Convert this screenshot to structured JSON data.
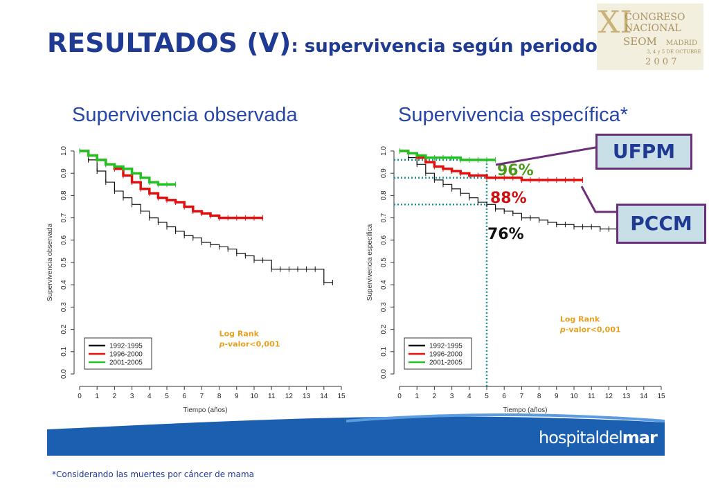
{
  "slide": {
    "title_main": "RESULTADOS (V)",
    "title_sub": ": supervivencia según periodo",
    "footnote": "*Considerando las muertes por cáncer de mama",
    "brand_prefix": "hospitaldel",
    "brand_suffix": "mar"
  },
  "logo": {
    "roman": "XI",
    "line1": "CONGRESO",
    "line2": "NACIONAL",
    "line3": "SEOM",
    "city": "MADRID",
    "dates": "3, 4 y 5 DE OCTUBRE",
    "year": "2 0 0 7"
  },
  "colors": {
    "title": "#1f3a93",
    "series_1992": "#111111",
    "series_1996": "#e01010",
    "series_2001": "#22c022",
    "logrank": "#e8a020",
    "band": "#1a5fb0",
    "box_border": "#6b2f7a",
    "guide": "#1a9090"
  },
  "annotations": {
    "pct_ufpm": "96%",
    "pct_pccm": "88%",
    "pct_black": "76%",
    "box_ufpm": "UFPM",
    "box_pccm": "PCCM"
  },
  "chart_data": [
    {
      "type": "line",
      "title": "Supervivencia observada",
      "xlabel": "Tiempo (años)",
      "ylabel": "Supervivencia observada",
      "xlim": [
        0,
        15
      ],
      "ylim": [
        0,
        1
      ],
      "x_ticks": [
        "0",
        "1",
        "2",
        "3",
        "4",
        "5",
        "6",
        "7",
        "8",
        "9",
        "10",
        "11",
        "12",
        "13",
        "14",
        "15"
      ],
      "y_ticks": [
        "0.0",
        "0.1",
        "0.2",
        "0.3",
        "0.4",
        "0.5",
        "0.6",
        "0.7",
        "0.8",
        "0.9",
        "1.0"
      ],
      "legend_position": "bottom-left",
      "legend": [
        "1992-1995",
        "1996-2000",
        "2001-2005"
      ],
      "annotation_line1": "Log Rank",
      "annotation_p": "p",
      "annotation_rest": "-valor<0,001",
      "series": [
        {
          "name": "1992-1995",
          "x": [
            0,
            0.5,
            1,
            1.5,
            2,
            2.5,
            3,
            3.5,
            4,
            4.5,
            5,
            5.5,
            6,
            6.5,
            7,
            7.5,
            8,
            8.5,
            9,
            9.5,
            10,
            10.5,
            11,
            11.5,
            12,
            12.5,
            13,
            13.5,
            14,
            14.5
          ],
          "y": [
            1.0,
            0.96,
            0.91,
            0.86,
            0.82,
            0.79,
            0.76,
            0.73,
            0.7,
            0.68,
            0.66,
            0.64,
            0.62,
            0.61,
            0.59,
            0.58,
            0.57,
            0.56,
            0.54,
            0.53,
            0.51,
            0.51,
            0.47,
            0.47,
            0.47,
            0.47,
            0.47,
            0.47,
            0.41,
            0.41
          ]
        },
        {
          "name": "1996-2000",
          "x": [
            0,
            0.5,
            1,
            1.5,
            2,
            2.5,
            3,
            3.5,
            4,
            4.5,
            5,
            5.5,
            6,
            6.5,
            7,
            7.5,
            8,
            8.5,
            9,
            9.5,
            10,
            10.5
          ],
          "y": [
            1.0,
            0.98,
            0.96,
            0.94,
            0.92,
            0.89,
            0.86,
            0.83,
            0.81,
            0.79,
            0.78,
            0.77,
            0.75,
            0.73,
            0.72,
            0.71,
            0.7,
            0.7,
            0.7,
            0.7,
            0.7,
            0.7
          ]
        },
        {
          "name": "2001-2005",
          "x": [
            0,
            0.5,
            1,
            1.5,
            2,
            2.5,
            3,
            3.5,
            4,
            4.5,
            5,
            5.5
          ],
          "y": [
            1.0,
            0.98,
            0.96,
            0.94,
            0.93,
            0.92,
            0.9,
            0.88,
            0.86,
            0.85,
            0.85,
            0.85
          ]
        }
      ]
    },
    {
      "type": "line",
      "title": "Supervivencia específica*",
      "xlabel": "Tiempo (años)",
      "ylabel": "Supervivencia específica",
      "xlim": [
        0,
        15
      ],
      "ylim": [
        0,
        1
      ],
      "x_ticks": [
        "0",
        "1",
        "2",
        "3",
        "4",
        "5",
        "6",
        "7",
        "8",
        "9",
        "10",
        "11",
        "12",
        "13",
        "14",
        "15"
      ],
      "y_ticks": [
        "0.0",
        "0.1",
        "0.2",
        "0.3",
        "0.4",
        "0.5",
        "0.6",
        "0.7",
        "0.8",
        "0.9",
        "1.0"
      ],
      "legend_position": "bottom-left",
      "legend": [
        "1992-1995",
        "1996-2000",
        "2001-2005"
      ],
      "annotation_line1": "Log Rank",
      "annotation_p": "p",
      "annotation_rest": "-valor<0,001",
      "guide_x": 5,
      "guide_y": [
        0.96,
        0.88,
        0.76
      ],
      "series": [
        {
          "name": "1992-1995",
          "x": [
            0,
            0.5,
            1,
            1.5,
            2,
            2.5,
            3,
            3.5,
            4,
            4.5,
            5,
            5.5,
            6,
            6.5,
            7,
            7.5,
            8,
            8.5,
            9,
            9.5,
            10,
            10.5,
            11,
            11.5,
            12,
            12.5,
            13,
            13.5
          ],
          "y": [
            1.0,
            0.97,
            0.94,
            0.9,
            0.87,
            0.85,
            0.83,
            0.81,
            0.79,
            0.77,
            0.76,
            0.74,
            0.73,
            0.72,
            0.7,
            0.7,
            0.69,
            0.68,
            0.67,
            0.67,
            0.66,
            0.66,
            0.66,
            0.65,
            0.65,
            0.65,
            0.65,
            0.65
          ]
        },
        {
          "name": "1996-2000",
          "x": [
            0,
            0.5,
            1,
            1.5,
            2,
            2.5,
            3,
            3.5,
            4,
            4.5,
            5,
            5.5,
            6,
            6.5,
            7,
            7.5,
            8,
            8.5,
            9,
            9.5,
            10,
            10.5
          ],
          "y": [
            1.0,
            0.99,
            0.97,
            0.95,
            0.93,
            0.92,
            0.91,
            0.9,
            0.89,
            0.89,
            0.88,
            0.88,
            0.88,
            0.88,
            0.87,
            0.87,
            0.87,
            0.87,
            0.87,
            0.87,
            0.87,
            0.87
          ]
        },
        {
          "name": "2001-2005",
          "x": [
            0,
            0.5,
            1,
            1.5,
            2,
            2.5,
            3,
            3.5,
            4,
            4.5,
            5,
            5.5
          ],
          "y": [
            1.0,
            0.99,
            0.98,
            0.97,
            0.97,
            0.97,
            0.97,
            0.96,
            0.96,
            0.96,
            0.96,
            0.96
          ]
        }
      ]
    }
  ]
}
